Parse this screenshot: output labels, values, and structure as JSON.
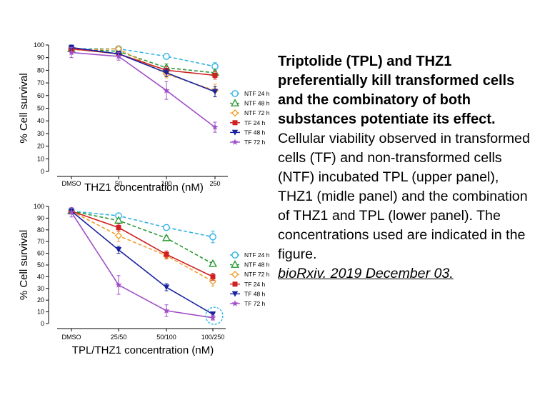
{
  "caption": {
    "title": "Triptolide (TPL) and THZ1 preferentially kill transformed cells and the combinatory of both substances potentiate its effect.",
    "body": "Cellular viability observed in transformed cells (TF) and non-transformed cells (NTF) incubated TPL (upper panel), THZ1 (midle panel) and the combination of THZ1 and TPL (lower panel). The concentrations  used are indicated in the figure.",
    "citation": "bioRxiv. 2019 December 03."
  },
  "colors": {
    "NTF 24 h": "#2fb3e3",
    "NTF 48 h": "#2a9a35",
    "NTF 72 h": "#f0a030",
    "TF 24 h": "#d02020",
    "TF 48 h": "#1a22a0",
    "TF 72 h": "#a050c8"
  },
  "chart_data": [
    {
      "type": "line",
      "title": "",
      "xlabel": "THZ1 concentration (nM)",
      "ylabel": "% Cell survival",
      "ylim": [
        0,
        100
      ],
      "yticks": [
        0,
        10,
        20,
        30,
        40,
        50,
        60,
        70,
        80,
        90,
        100
      ],
      "categories": [
        "DMSO",
        "50",
        "100",
        "250"
      ],
      "legend": "right",
      "series": [
        {
          "name": "NTF 24 h",
          "values": [
            97,
            97,
            91,
            83
          ],
          "errors": [
            2,
            2,
            2,
            3
          ]
        },
        {
          "name": "NTF 48 h",
          "values": [
            97,
            95,
            82,
            78
          ],
          "errors": [
            2,
            2,
            3,
            3
          ]
        },
        {
          "name": "NTF 72 h",
          "values": [
            96,
            97,
            77,
            64
          ],
          "errors": [
            2,
            2,
            3,
            5
          ]
        },
        {
          "name": "TF 24 h",
          "values": [
            97,
            93,
            80,
            76
          ],
          "errors": [
            2,
            2,
            3,
            3
          ]
        },
        {
          "name": "TF 48 h",
          "values": [
            98,
            93,
            78,
            63
          ],
          "errors": [
            2,
            2,
            3,
            4
          ]
        },
        {
          "name": "TF 72 h",
          "values": [
            94,
            91,
            64,
            35
          ],
          "errors": [
            4,
            3,
            7,
            4
          ]
        }
      ]
    },
    {
      "type": "line",
      "title": "",
      "xlabel": "TPL/THZ1 concentration (nM)",
      "ylabel": "% Cell survival",
      "ylim": [
        0,
        100
      ],
      "yticks": [
        0,
        10,
        20,
        30,
        40,
        50,
        60,
        70,
        80,
        90,
        100
      ],
      "categories": [
        "DMSO",
        "25/50",
        "50/100",
        "100/250"
      ],
      "legend": "right",
      "annotation": "dashed circle around 100/250 points",
      "series": [
        {
          "name": "NTF 24 h",
          "values": [
            96,
            92,
            82,
            74
          ],
          "errors": [
            2,
            2,
            2,
            5
          ]
        },
        {
          "name": "NTF 48 h",
          "values": [
            96,
            88,
            73,
            51
          ],
          "errors": [
            2,
            2,
            2,
            2
          ]
        },
        {
          "name": "NTF 72 h",
          "values": [
            96,
            75,
            58,
            36
          ],
          "errors": [
            2,
            5,
            3,
            4
          ]
        },
        {
          "name": "TF 24 h",
          "values": [
            96,
            82,
            59,
            40
          ],
          "errors": [
            2,
            3,
            3,
            3
          ]
        },
        {
          "name": "TF 48 h",
          "values": [
            96,
            63,
            31,
            8
          ],
          "errors": [
            2,
            3,
            3,
            2
          ]
        },
        {
          "name": "TF 72 h",
          "values": [
            95,
            33,
            11,
            5
          ],
          "errors": [
            4,
            8,
            5,
            2
          ]
        }
      ]
    }
  ]
}
